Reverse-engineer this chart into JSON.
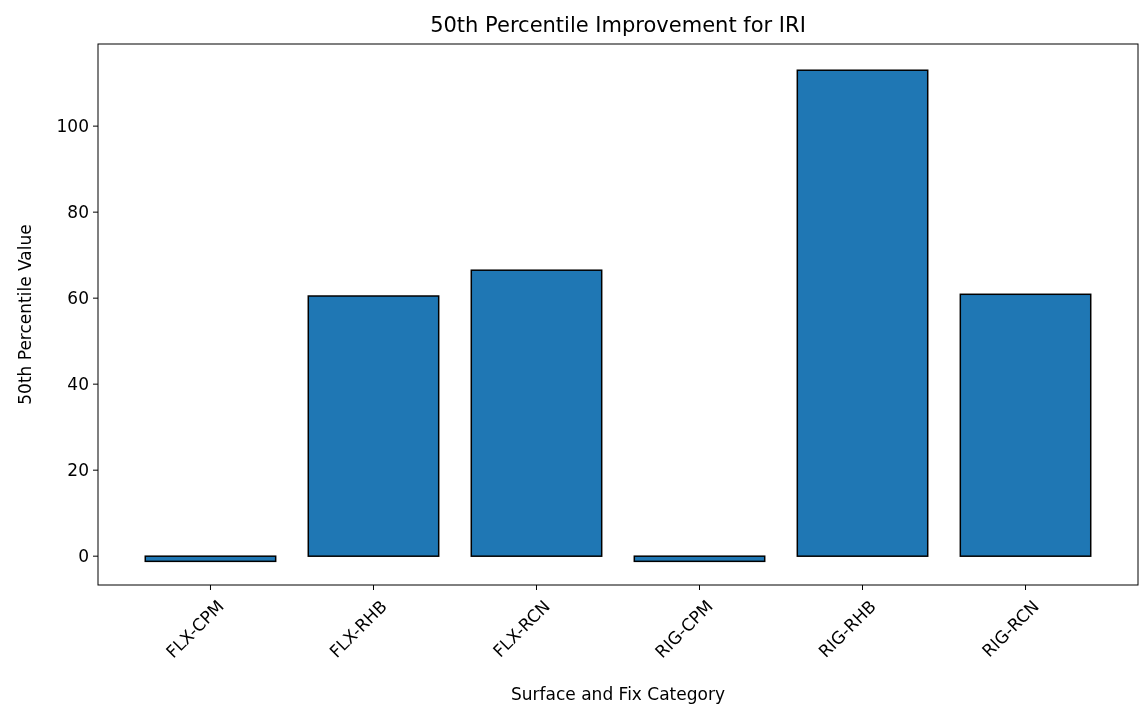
{
  "chart_data": {
    "type": "bar",
    "title": "50th Percentile Improvement for IRI",
    "xlabel": "Surface and Fix Category",
    "ylabel": "50th Percentile Value",
    "categories": [
      "FLX-CPM",
      "FLX-RHB",
      "FLX-RCN",
      "RIG-CPM",
      "RIG-RHB",
      "RIG-RCN"
    ],
    "values": [
      -1.2,
      60.5,
      66.5,
      -1.2,
      113.0,
      60.9
    ],
    "color": "#1f77b4",
    "ylim": [
      -6.7,
      119.1
    ],
    "yticks": [
      0,
      20,
      40,
      60,
      80,
      100
    ],
    "grid": false
  }
}
